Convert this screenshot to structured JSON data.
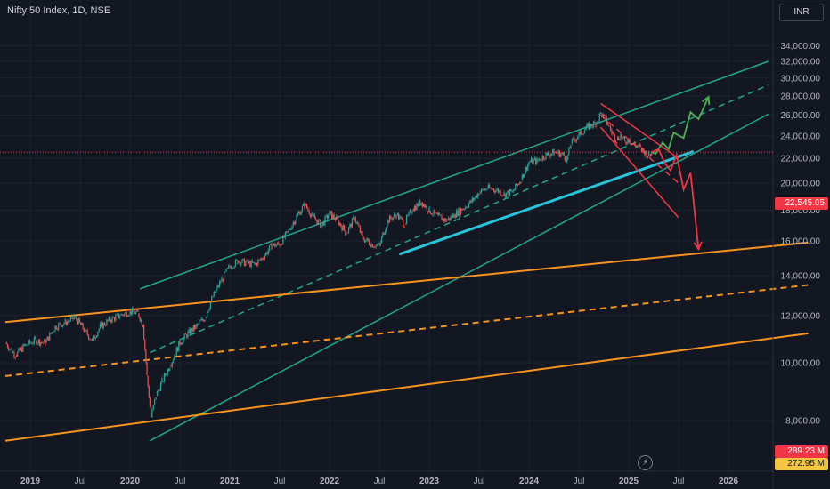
{
  "header": {
    "title": "Nifty 50 Index, 1D, NSE",
    "currency": "INR"
  },
  "price_tags": {
    "last": "22,545.05",
    "vol1": "289.23 M",
    "vol2": "272.95 M"
  },
  "colors": {
    "background": "#131722",
    "green_channel": "#1ea889",
    "orange_channel": "#f7941d",
    "cyan_trend": "#26c6da",
    "red_projection": "#f23645",
    "green_projection": "#4caf50",
    "candle_up": "#26a69a",
    "candle_down": "#ef5350",
    "last_price_line": "#f23645"
  },
  "icons": {
    "flash": "lightning-icon"
  },
  "chart_data": {
    "type": "line",
    "title": "Nifty 50 Index, 1D, NSE",
    "y_scale": "log",
    "ylim": [
      7000,
      35000
    ],
    "y_ticks": [
      "8,000.00",
      "10,000.00",
      "12,000.00",
      "14,000.00",
      "16,000.00",
      "18,000.00",
      "20,000.00",
      "22,000.00",
      "24,000.00",
      "26,000.00",
      "28,000.00",
      "30,000.00",
      "32,000.00",
      "34,000.00"
    ],
    "y_tick_values": [
      8000,
      10000,
      12000,
      14000,
      16000,
      18000,
      20000,
      22000,
      24000,
      26000,
      28000,
      30000,
      32000,
      34000
    ],
    "x_ticks": [
      "2019",
      "Jul",
      "2020",
      "Jul",
      "2021",
      "Jul",
      "2022",
      "Jul",
      "2023",
      "Jul",
      "2024",
      "Jul",
      "2025",
      "Jul",
      "2026"
    ],
    "x_tick_dates": [
      2019.0,
      2019.5,
      2020.0,
      2020.5,
      2021.0,
      2021.5,
      2022.0,
      2022.5,
      2023.0,
      2023.5,
      2024.0,
      2024.5,
      2025.0,
      2025.5,
      2026.0
    ],
    "last_price": 22545.05,
    "series": [
      {
        "name": "Nifty 50 Index",
        "points": [
          [
            2018.75,
            10800
          ],
          [
            2018.85,
            10300
          ],
          [
            2018.95,
            10700
          ],
          [
            2019.05,
            10900
          ],
          [
            2019.15,
            10800
          ],
          [
            2019.25,
            11500
          ],
          [
            2019.35,
            11700
          ],
          [
            2019.45,
            11900
          ],
          [
            2019.55,
            11300
          ],
          [
            2019.62,
            10900
          ],
          [
            2019.7,
            11500
          ],
          [
            2019.8,
            11800
          ],
          [
            2019.9,
            12000
          ],
          [
            2020.0,
            12200
          ],
          [
            2020.08,
            12100
          ],
          [
            2020.13,
            11600
          ],
          [
            2020.17,
            9500
          ],
          [
            2020.21,
            8100
          ],
          [
            2020.26,
            8800
          ],
          [
            2020.32,
            9300
          ],
          [
            2020.4,
            9900
          ],
          [
            2020.5,
            10800
          ],
          [
            2020.58,
            11200
          ],
          [
            2020.66,
            11500
          ],
          [
            2020.75,
            11900
          ],
          [
            2020.83,
            12900
          ],
          [
            2020.92,
            13800
          ],
          [
            2021.0,
            14500
          ],
          [
            2021.08,
            14800
          ],
          [
            2021.17,
            14700
          ],
          [
            2021.25,
            14600
          ],
          [
            2021.33,
            15000
          ],
          [
            2021.42,
            15700
          ],
          [
            2021.5,
            15800
          ],
          [
            2021.58,
            16500
          ],
          [
            2021.67,
            17600
          ],
          [
            2021.75,
            18400
          ],
          [
            2021.83,
            17600
          ],
          [
            2021.92,
            17000
          ],
          [
            2022.0,
            17800
          ],
          [
            2022.08,
            17300
          ],
          [
            2022.17,
            16500
          ],
          [
            2022.25,
            17500
          ],
          [
            2022.33,
            16200
          ],
          [
            2022.42,
            15800
          ],
          [
            2022.5,
            15700
          ],
          [
            2022.58,
            17300
          ],
          [
            2022.67,
            17700
          ],
          [
            2022.75,
            17100
          ],
          [
            2022.83,
            18100
          ],
          [
            2022.92,
            18600
          ],
          [
            2023.0,
            18000
          ],
          [
            2023.08,
            17600
          ],
          [
            2023.17,
            17300
          ],
          [
            2023.25,
            17700
          ],
          [
            2023.33,
            18100
          ],
          [
            2023.42,
            18600
          ],
          [
            2023.5,
            19300
          ],
          [
            2023.58,
            19600
          ],
          [
            2023.67,
            19500
          ],
          [
            2023.75,
            19200
          ],
          [
            2023.83,
            19300
          ],
          [
            2023.92,
            20300
          ],
          [
            2024.0,
            21700
          ],
          [
            2024.08,
            21800
          ],
          [
            2024.17,
            22300
          ],
          [
            2024.25,
            22500
          ],
          [
            2024.33,
            22400
          ],
          [
            2024.38,
            21900
          ],
          [
            2024.42,
            23300
          ],
          [
            2024.5,
            24100
          ],
          [
            2024.58,
            24800
          ],
          [
            2024.67,
            25200
          ],
          [
            2024.72,
            26200
          ],
          [
            2024.78,
            25300
          ],
          [
            2024.83,
            24300
          ],
          [
            2024.88,
            23600
          ],
          [
            2024.92,
            24100
          ],
          [
            2024.96,
            23400
          ],
          [
            2025.0,
            23700
          ],
          [
            2025.04,
            23200
          ],
          [
            2025.08,
            23100
          ],
          [
            2025.12,
            22900
          ],
          [
            2025.16,
            22500
          ],
          [
            2025.2,
            22300
          ],
          [
            2025.23,
            22545.05
          ]
        ]
      },
      {
        "name": "Bullish projection",
        "points": [
          [
            2025.23,
            22545.05
          ],
          [
            2025.27,
            22400
          ],
          [
            2025.34,
            23400
          ],
          [
            2025.4,
            22800
          ],
          [
            2025.45,
            24300
          ],
          [
            2025.55,
            23800
          ],
          [
            2025.62,
            26300
          ],
          [
            2025.7,
            25600
          ],
          [
            2025.8,
            27900
          ]
        ]
      },
      {
        "name": "Bearish projection",
        "points": [
          [
            2025.23,
            22545.05
          ],
          [
            2025.3,
            22800
          ],
          [
            2025.36,
            21600
          ],
          [
            2025.42,
            21000
          ],
          [
            2025.48,
            22300
          ],
          [
            2025.55,
            19500
          ],
          [
            2025.62,
            20800
          ],
          [
            2025.7,
            15500
          ]
        ]
      }
    ],
    "drawings": [
      {
        "name": "Upper channel top",
        "style": "solid",
        "color": "green",
        "from": [
          2020.1,
          13300
        ],
        "to": [
          2026.4,
          32000
        ]
      },
      {
        "name": "Upper channel mid",
        "style": "dashed",
        "color": "green",
        "from": [
          2020.2,
          10400
        ],
        "to": [
          2026.4,
          29200
        ]
      },
      {
        "name": "Upper channel bottom",
        "style": "solid",
        "color": "green",
        "from": [
          2020.2,
          7400
        ],
        "to": [
          2026.4,
          26100
        ]
      },
      {
        "name": "Rising support",
        "style": "solid",
        "color": "cyan",
        "from": [
          2022.7,
          15200
        ],
        "to": [
          2025.65,
          22600
        ]
      },
      {
        "name": "Lower channel top",
        "style": "solid",
        "color": "orange",
        "from": [
          2018.75,
          11700
        ],
        "to": [
          2026.8,
          15900
        ]
      },
      {
        "name": "Lower channel mid",
        "style": "dashed",
        "color": "orange",
        "from": [
          2018.75,
          9500
        ],
        "to": [
          2026.8,
          13500
        ]
      },
      {
        "name": "Lower channel bottom",
        "style": "solid",
        "color": "orange",
        "from": [
          2018.75,
          7400
        ],
        "to": [
          2026.8,
          11200
        ]
      },
      {
        "name": "Falling channel top",
        "style": "solid",
        "color": "red",
        "from": [
          2024.72,
          27200
        ],
        "to": [
          2025.5,
          22000
        ]
      },
      {
        "name": "Falling channel mid",
        "style": "dashed",
        "color": "red",
        "from": [
          2024.72,
          26000
        ],
        "to": [
          2025.5,
          20000
        ]
      },
      {
        "name": "Falling channel bottom",
        "style": "solid",
        "color": "red",
        "from": [
          2024.72,
          24800
        ],
        "to": [
          2025.5,
          17500
        ]
      }
    ]
  }
}
